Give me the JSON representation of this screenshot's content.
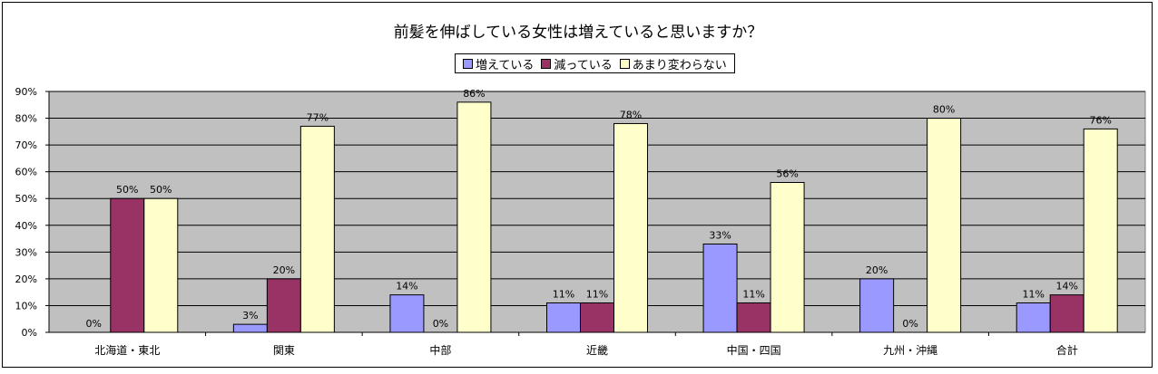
{
  "chart_data": {
    "type": "bar",
    "title": "前髪を伸ばしている女性は増えていると思いますか？",
    "xlabel": "",
    "ylabel": "",
    "ylim": [
      0,
      90
    ],
    "yticks": [
      "0%",
      "10%",
      "20%",
      "30%",
      "40%",
      "50%",
      "60%",
      "70%",
      "80%",
      "90%"
    ],
    "legend_position": "top-center",
    "grid": true,
    "categories": [
      "北海道・東北",
      "関東",
      "中部",
      "近畿",
      "中国・四国",
      "九州・沖縄",
      "合計"
    ],
    "series": [
      {
        "name": "増えている",
        "color": "#9999ff",
        "values": [
          0,
          3,
          14,
          11,
          33,
          20,
          11
        ],
        "labels": [
          "0%",
          "3%",
          "14%",
          "11%",
          "33%",
          "20%",
          "11%"
        ]
      },
      {
        "name": "減っている",
        "color": "#993366",
        "values": [
          50,
          20,
          0,
          11,
          11,
          0,
          14
        ],
        "labels": [
          "50%",
          "20%",
          "0%",
          "11%",
          "11%",
          "0%",
          "14%"
        ]
      },
      {
        "name": "あまり変わらない",
        "color": "#ffffcc",
        "values": [
          50,
          77,
          86,
          78,
          56,
          80,
          76
        ],
        "labels": [
          "50%",
          "77%",
          "86%",
          "78%",
          "56%",
          "80%",
          "76%"
        ]
      }
    ],
    "plot_background": "#c0c0c0"
  }
}
